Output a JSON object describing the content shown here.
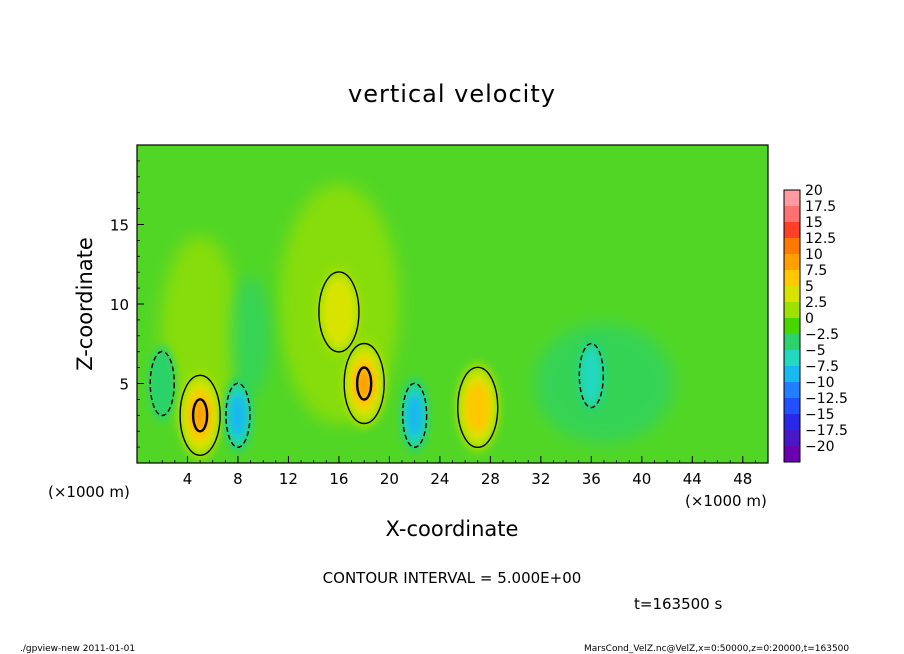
{
  "chart_data": {
    "type": "heatmap",
    "title": "vertical velocity",
    "xlabel": "X-coordinate",
    "ylabel": "Z-coordinate",
    "x_unit": "(×1000 m)",
    "y_unit": "(×1000 m)",
    "x_ticks": [
      "4",
      "8",
      "12",
      "16",
      "20",
      "24",
      "28",
      "32",
      "36",
      "40",
      "44",
      "48"
    ],
    "y_ticks": [
      "5",
      "10",
      "15"
    ],
    "xlim": [
      0,
      50
    ],
    "ylim": [
      0,
      20
    ],
    "contour_interval_text": "CONTOUR INTERVAL = 5.000E+00",
    "time_text": "t=163500 s",
    "colorbar": {
      "labels": [
        "20",
        "17.5",
        "15",
        "12.5",
        "10",
        "7.5",
        "5",
        "2.5",
        "0",
        "−2.5",
        "−5",
        "−7.5",
        "−10",
        "−12.5",
        "−15",
        "−17.5",
        "−20"
      ],
      "colors": [
        "#ff9aa0",
        "#ff7070",
        "#ff4028",
        "#ff7a00",
        "#ffa000",
        "#ffc800",
        "#d8e400",
        "#9ee000",
        "#48d800",
        "#2cd26a",
        "#22d8c0",
        "#18b8f0",
        "#2080ff",
        "#2050ff",
        "#2828e8",
        "#4818c8",
        "#6a00b0"
      ]
    },
    "features": [
      {
        "type": "updraft",
        "x": 5,
        "z": 3,
        "peak": 10
      },
      {
        "type": "updraft",
        "x": 18,
        "z": 5,
        "peak": 10
      },
      {
        "type": "updraft",
        "x": 27,
        "z": 3.5,
        "peak": 7.5
      },
      {
        "type": "updraft",
        "x": 16,
        "z": 9.5,
        "peak": 5
      },
      {
        "type": "downdraft",
        "x": 8,
        "z": 3,
        "peak": -7.5
      },
      {
        "type": "downdraft",
        "x": 22,
        "z": 3,
        "peak": -7.5
      },
      {
        "type": "downdraft",
        "x": 36,
        "z": 5.5,
        "peak": -5
      },
      {
        "type": "downdraft",
        "x": 2,
        "z": 5,
        "peak": -2.5
      }
    ],
    "grid": false,
    "legend": "right colorbar"
  },
  "footer": {
    "left": "./gpview-new   2011-01-01",
    "right": "MarsCond_VelZ.nc@VelZ,x=0:50000,z=0:20000,t=163500"
  }
}
